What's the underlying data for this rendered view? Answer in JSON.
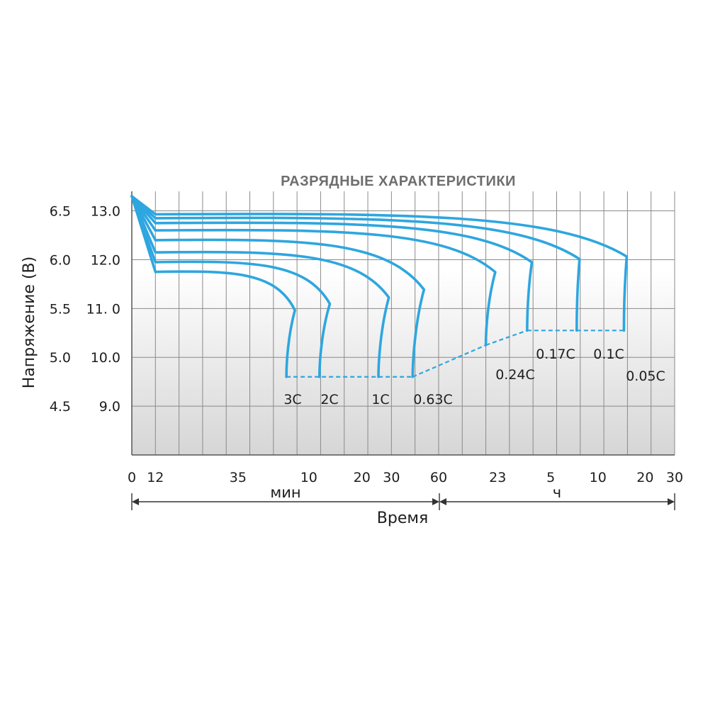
{
  "chart_data": {
    "type": "line",
    "title": "РАЗРЯДНЫЕ ХАРАКТЕРИСТИКИ",
    "ylabel": "Напряжение (В)",
    "xlabel": "Время",
    "x_unit_minutes": "мин",
    "x_unit_hours": "ч",
    "x_ticks": [
      "0",
      "12",
      "35",
      "10",
      "20",
      "30",
      "60",
      "23",
      "5",
      "10",
      "20",
      "30"
    ],
    "y_ticks_12v": [
      "13.0",
      "12.0",
      "11. 0",
      "10.0",
      "9.0"
    ],
    "y_ticks_6v": [
      "6.5",
      "6.0",
      "5.5",
      "5.0",
      "4.5"
    ],
    "y_values": [
      13.0,
      12.0,
      11.0,
      10.0,
      9.0
    ],
    "ylim": [
      8.0,
      13.4
    ],
    "grid": true,
    "line_color": "#2ea6df",
    "series": [
      {
        "name": "3C",
        "start_v": 13.3,
        "plateau_v": 11.75,
        "knee_x": 7.0,
        "end_x": 6.55,
        "end_v": 9.6
      },
      {
        "name": "2C",
        "start_v": 13.3,
        "plateau_v": 11.95,
        "knee_x": 8.5,
        "end_x": 7.95,
        "end_v": 9.6
      },
      {
        "name": "1C",
        "start_v": 13.3,
        "plateau_v": 12.15,
        "knee_x": 11.0,
        "end_x": 10.45,
        "end_v": 9.6
      },
      {
        "name": "0.63C",
        "start_v": 13.3,
        "plateau_v": 12.4,
        "knee_x": 12.5,
        "end_x": 11.9,
        "end_v": 9.6
      },
      {
        "name": "0.24C",
        "start_v": 13.3,
        "plateau_v": 12.6,
        "knee_x": 15.5,
        "end_x": 15.0,
        "end_v": 10.25
      },
      {
        "name": "0.17C",
        "start_v": 13.3,
        "plateau_v": 12.75,
        "knee_x": 17.0,
        "end_x": 16.75,
        "end_v": 10.55
      },
      {
        "name": "0.1C",
        "start_v": 13.3,
        "plateau_v": 12.85,
        "knee_x": 19.0,
        "end_x": 18.85,
        "end_v": 10.55
      },
      {
        "name": "0.05C",
        "start_v": 13.3,
        "plateau_v": 12.93,
        "knee_x": 21.0,
        "end_x": 20.85,
        "end_v": 10.55
      }
    ],
    "cutoff_lines": [
      {
        "from": "3C",
        "to": "0.63C"
      },
      {
        "from": "0.63C",
        "to": "0.24C"
      },
      {
        "from": "0.24C",
        "to": "0.17C"
      },
      {
        "from": "0.17C",
        "to": "0.05C"
      }
    ]
  }
}
